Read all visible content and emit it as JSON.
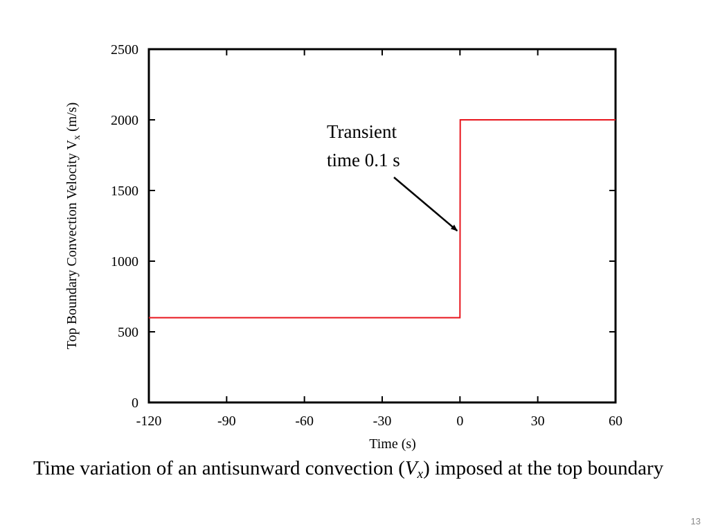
{
  "chart_data": {
    "type": "line",
    "xlabel": "Time (s)",
    "ylabel": {
      "prefix": "Top Boundary Convection Velocity V",
      "subscript": "x",
      "suffix": " (m/s)"
    },
    "xlim": [
      -120,
      60
    ],
    "ylim": [
      0,
      2500
    ],
    "xticks": [
      -120,
      -90,
      -60,
      -30,
      0,
      30,
      60
    ],
    "yticks": [
      0,
      500,
      1000,
      1500,
      2000,
      2500
    ],
    "grid": false,
    "series": [
      {
        "color": "#e8141c",
        "points": [
          [
            -120,
            600
          ],
          [
            0,
            600
          ],
          [
            0.1,
            2000
          ],
          [
            60,
            2000
          ]
        ]
      }
    ],
    "annotation": {
      "lines": [
        "Transient",
        "time 0.1 s"
      ],
      "arrow_target": [
        0,
        1220
      ]
    }
  },
  "caption": {
    "before": "Time variation of an antisunward convection (",
    "var": "V",
    "sub": "x",
    "after": ") imposed at the top boundary"
  },
  "slide_number": "13"
}
